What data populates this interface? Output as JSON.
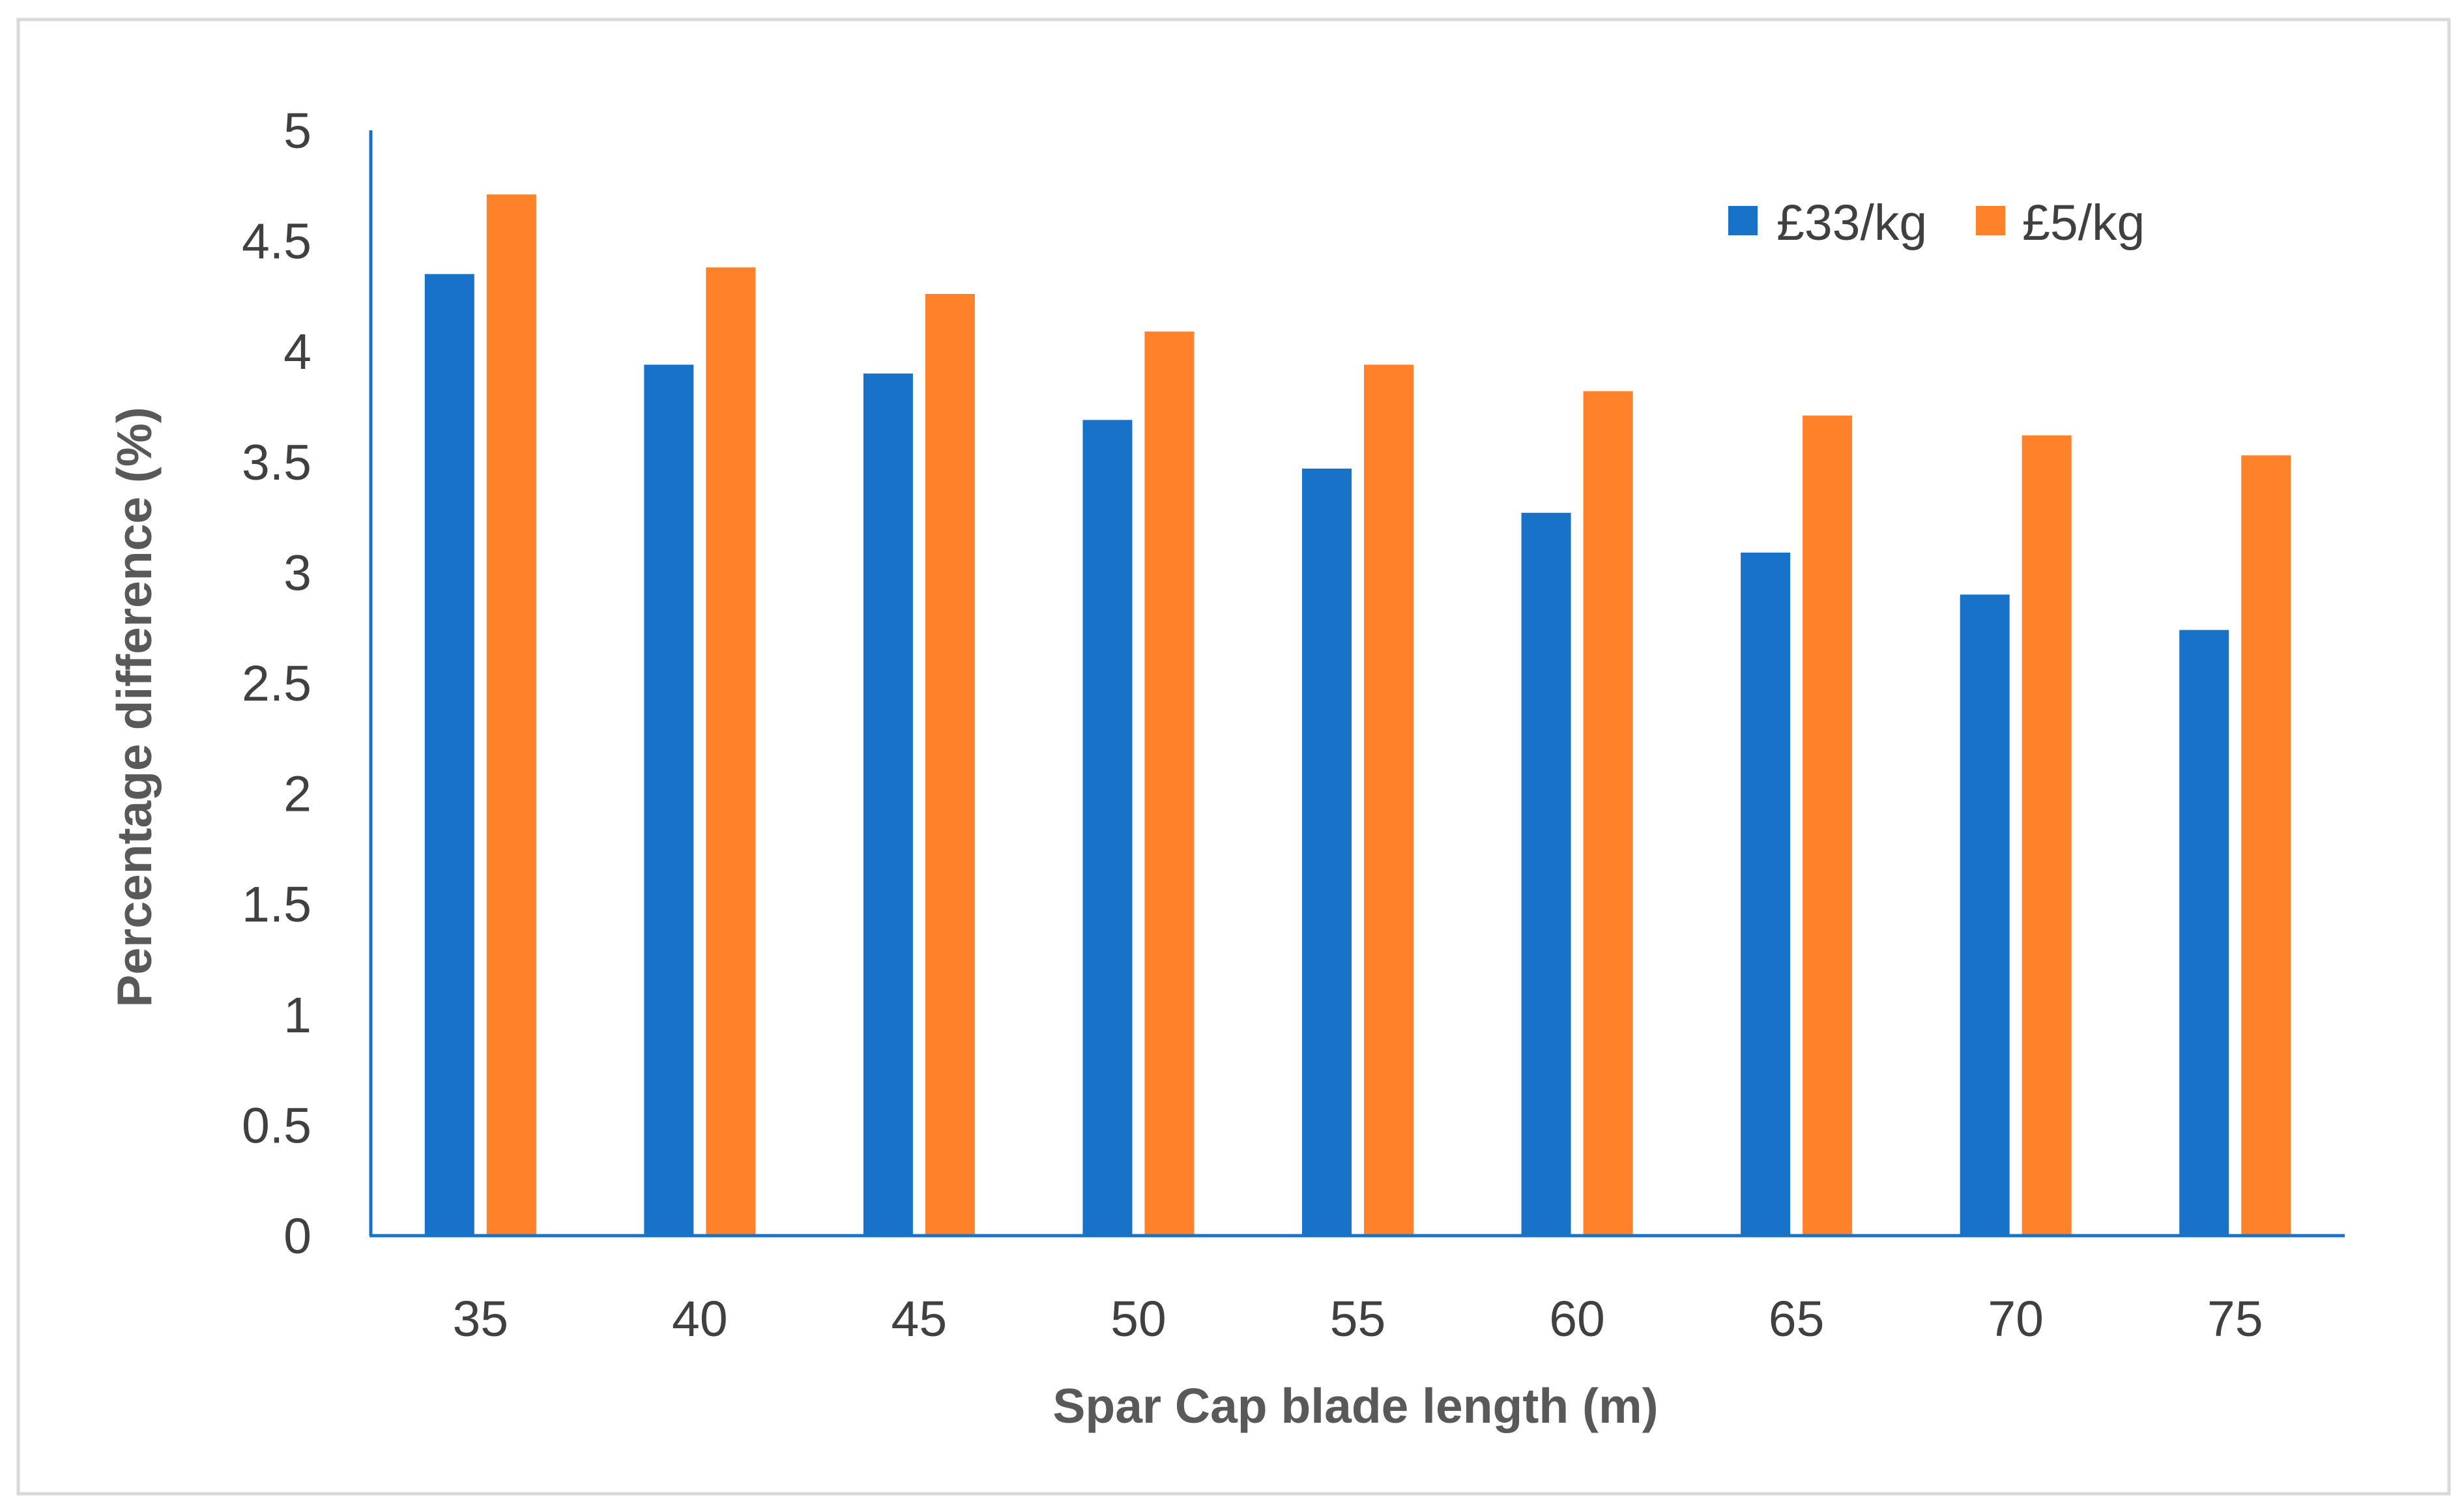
{
  "chart_data": {
    "type": "bar",
    "title": "",
    "xlabel": "Spar Cap blade length (m)",
    "ylabel": "Percentage difference (%)",
    "categories": [
      "35",
      "40",
      "45",
      "50",
      "55",
      "60",
      "65",
      "70",
      "75"
    ],
    "series": [
      {
        "name": "£33/kg",
        "color": "#1872C8",
        "values": [
          4.35,
          3.94,
          3.9,
          3.69,
          3.47,
          3.27,
          3.09,
          2.9,
          2.74
        ]
      },
      {
        "name": "£5/kg",
        "color": "#FF8129",
        "values": [
          4.71,
          4.38,
          4.26,
          4.09,
          3.94,
          3.82,
          3.71,
          3.62,
          3.53
        ]
      }
    ],
    "ylim": [
      0,
      5
    ],
    "yticks": [
      "0",
      "0.5",
      "1",
      "1.5",
      "2",
      "2.5",
      "3",
      "3.5",
      "4",
      "4.5",
      "5"
    ],
    "grid": false,
    "legend_position": "top-right",
    "axis_color": "#1872C8"
  }
}
